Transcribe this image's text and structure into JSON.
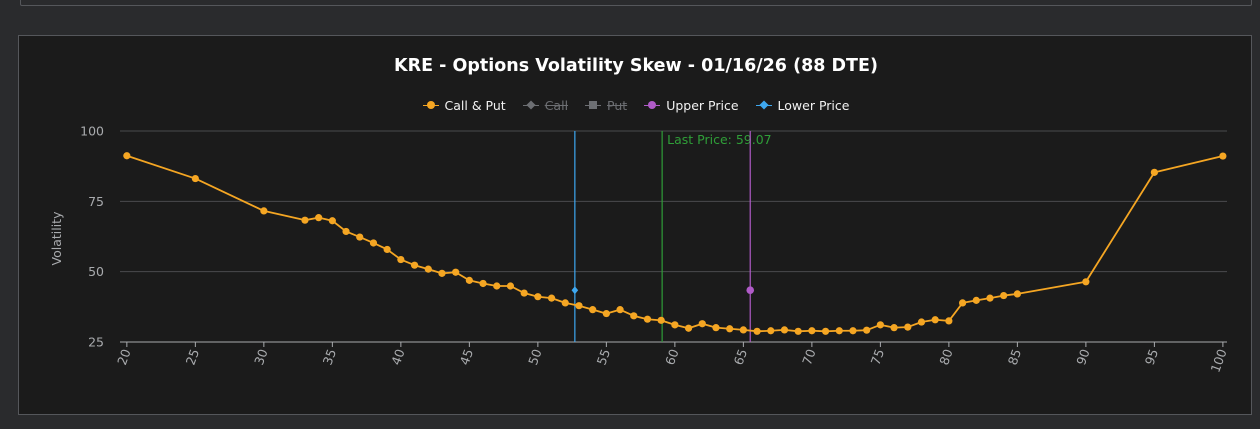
{
  "chart_data": {
    "type": "line",
    "title": "KRE - Options Volatility Skew - 01/16/26 (88 DTE)",
    "xlabel": "",
    "ylabel": "Volatility",
    "xlim": [
      19.5,
      100.3
    ],
    "ylim": [
      25,
      100
    ],
    "grid": true,
    "legend_position": "top-center",
    "x_ticks": [
      20,
      25,
      30,
      35,
      40,
      45,
      50,
      55,
      60,
      65,
      70,
      75,
      80,
      85,
      90,
      95,
      100
    ],
    "y_ticks": [
      25,
      50,
      75,
      100
    ],
    "legend": [
      {
        "label": "Call & Put",
        "color": "#f5a623",
        "marker": "circle",
        "active": true
      },
      {
        "label": "Call",
        "color": "#6d6f73",
        "marker": "diamond",
        "active": false
      },
      {
        "label": "Put",
        "color": "#6d6f73",
        "marker": "square",
        "active": false
      },
      {
        "label": "Upper Price",
        "color": "#b05bc8",
        "marker": "circle",
        "active": true
      },
      {
        "label": "Lower Price",
        "color": "#3ea8f0",
        "marker": "diamond",
        "active": true
      }
    ],
    "series": [
      {
        "name": "Call & Put",
        "color": "#f5a623",
        "x": [
          20,
          25,
          30,
          33,
          34,
          35,
          36,
          37,
          38,
          39,
          40,
          41,
          42,
          43,
          44,
          45,
          46,
          47,
          48,
          49,
          50,
          51,
          52,
          53,
          54,
          55,
          56,
          57,
          58,
          59,
          60,
          61,
          62,
          63,
          64,
          65,
          66,
          67,
          68,
          69,
          70,
          71,
          72,
          73,
          74,
          75,
          76,
          77,
          78,
          79,
          80,
          81,
          82,
          83,
          84,
          85,
          90,
          95,
          100
        ],
        "y": [
          91.2,
          83.1,
          71.6,
          68.3,
          69.2,
          68.1,
          64.3,
          62.3,
          60.2,
          57.9,
          54.3,
          52.3,
          50.9,
          49.4,
          49.8,
          46.9,
          45.8,
          44.9,
          44.9,
          42.4,
          41.1,
          40.6,
          38.9,
          37.9,
          36.5,
          35.1,
          36.5,
          34.3,
          33.1,
          32.7,
          31.1,
          29.9,
          31.5,
          30.1,
          29.7,
          29.3,
          28.8,
          29,
          29.3,
          28.8,
          29,
          28.8,
          29,
          29,
          29.2,
          31.1,
          30.1,
          30.3,
          32.1,
          32.9,
          32.5,
          38.9,
          39.8,
          40.6,
          41.5,
          42.1,
          46.4,
          85.3,
          91.1
        ]
      },
      {
        "name": "Upper Price",
        "color": "#b05bc8",
        "x": 65.5,
        "y": 43.4
      },
      {
        "name": "Lower Price",
        "color": "#3ea8f0",
        "x": 52.7,
        "y": 43.4
      }
    ],
    "annotations": [
      {
        "label": "Last Price: 59.07",
        "x": 59.07,
        "color": "#2f9e38"
      }
    ]
  }
}
